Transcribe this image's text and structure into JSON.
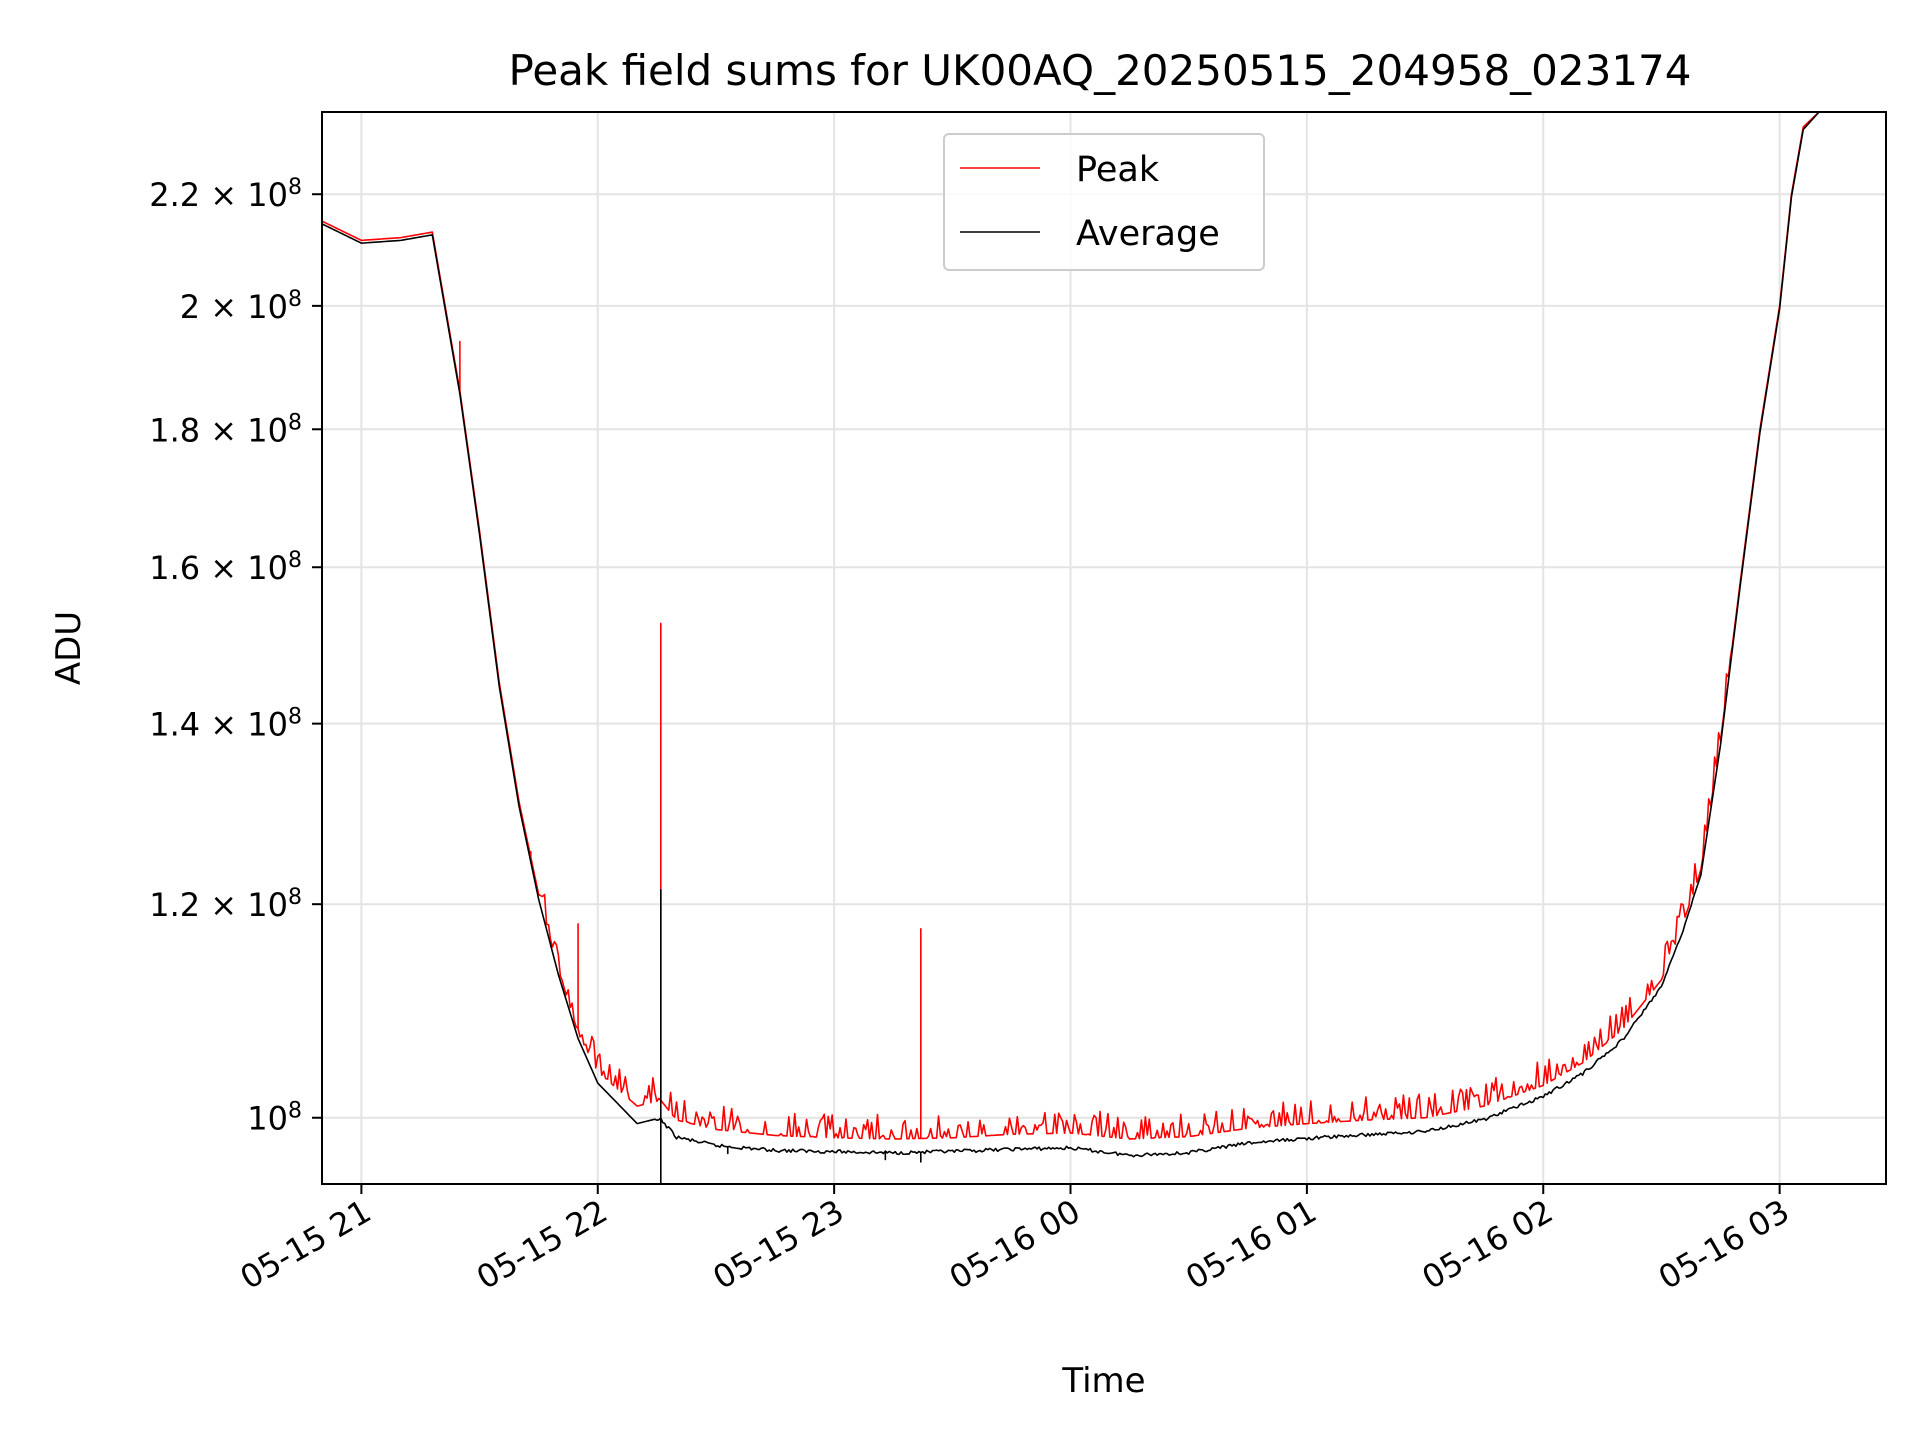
{
  "chart_data": {
    "type": "line",
    "title": "Peak field sums for UK00AQ_20250515_204958_023174",
    "xlabel": "Time",
    "ylabel": "ADU",
    "y_scale": "log",
    "ylim": [
      94500000,
      236000000
    ],
    "xlim": [
      "2025-05-15 20:50",
      "2025-05-16 03:27"
    ],
    "grid": true,
    "legend_position": "upper center",
    "x_ticks": [
      {
        "value": "2025-05-15 21:00",
        "label": "05-15 21"
      },
      {
        "value": "2025-05-15 22:00",
        "label": "05-15 22"
      },
      {
        "value": "2025-05-15 23:00",
        "label": "05-15 23"
      },
      {
        "value": "2025-05-16 00:00",
        "label": "05-16 00"
      },
      {
        "value": "2025-05-16 01:00",
        "label": "05-16 01"
      },
      {
        "value": "2025-05-16 02:00",
        "label": "05-16 02"
      },
      {
        "value": "2025-05-16 03:00",
        "label": "05-16 03"
      }
    ],
    "y_ticks": [
      {
        "value": 100000000,
        "mantissa": "",
        "exp": "8"
      },
      {
        "value": 120000000,
        "mantissa": "1.2",
        "exp": "8"
      },
      {
        "value": 140000000,
        "mantissa": "1.4",
        "exp": "8"
      },
      {
        "value": 160000000,
        "mantissa": "1.6",
        "exp": "8"
      },
      {
        "value": 180000000,
        "mantissa": "1.8",
        "exp": "8"
      },
      {
        "value": 200000000,
        "mantissa": "2",
        "exp": "8"
      },
      {
        "value": 220000000,
        "mantissa": "2.2",
        "exp": "8"
      }
    ],
    "x": [
      "2025-05-15 20:50",
      "2025-05-15 21:00",
      "2025-05-15 21:10",
      "2025-05-15 21:18",
      "2025-05-15 21:25",
      "2025-05-15 21:30",
      "2025-05-15 21:35",
      "2025-05-15 21:40",
      "2025-05-15 21:45",
      "2025-05-15 21:50",
      "2025-05-15 21:55",
      "2025-05-15 22:00",
      "2025-05-15 22:10",
      "2025-05-15 22:16",
      "2025-05-15 22:20",
      "2025-05-15 22:30",
      "2025-05-15 22:45",
      "2025-05-15 23:00",
      "2025-05-15 23:15",
      "2025-05-15 23:30",
      "2025-05-15 23:45",
      "2025-05-16 00:00",
      "2025-05-16 00:15",
      "2025-05-16 00:30",
      "2025-05-16 00:45",
      "2025-05-16 01:00",
      "2025-05-16 01:15",
      "2025-05-16 01:30",
      "2025-05-16 01:45",
      "2025-05-16 02:00",
      "2025-05-16 02:10",
      "2025-05-16 02:20",
      "2025-05-16 02:30",
      "2025-05-16 02:35",
      "2025-05-16 02:40",
      "2025-05-16 02:45",
      "2025-05-16 02:50",
      "2025-05-16 02:55",
      "2025-05-16 03:00",
      "2025-05-16 03:03",
      "2025-05-16 03:06",
      "2025-05-16 03:10",
      "2025-05-16 03:27"
    ],
    "series": [
      {
        "name": "Peak",
        "color": "#ff0000",
        "values": [
          215000000,
          211500000,
          212000000,
          213000000,
          186000000,
          165000000,
          145000000,
          131000000,
          121000000,
          113500000,
          107500000,
          104000000,
          101000000,
          101500000,
          99800000,
          99000000,
          98500000,
          98300000,
          98200000,
          98300000,
          98600000,
          98700000,
          98200000,
          98400000,
          99100000,
          99500000,
          99800000,
          100000000,
          101000000,
          102800000,
          104800000,
          107800000,
          112500000,
          117500000,
          123500000,
          138000000,
          158000000,
          180000000,
          200000000,
          220000000,
          233000000,
          236000000,
          236000000
        ]
      },
      {
        "name": "Average",
        "color": "#000000",
        "values": [
          214500000,
          211000000,
          211500000,
          212500000,
          185500000,
          164500000,
          144500000,
          130500000,
          120500000,
          113000000,
          107000000,
          103000000,
          99500000,
          100000000,
          98500000,
          97800000,
          97400000,
          97300000,
          97200000,
          97300000,
          97500000,
          97600000,
          97000000,
          97200000,
          98000000,
          98400000,
          98700000,
          99000000,
          100000000,
          102000000,
          104000000,
          107000000,
          112000000,
          117000000,
          123000000,
          137500000,
          157500000,
          179500000,
          199500000,
          219500000,
          232500000,
          236000000,
          236000000
        ]
      }
    ],
    "peak_spikes": [
      {
        "x": "2025-05-15 21:25",
        "value": 194000000
      },
      {
        "x": "2025-05-15 21:43",
        "value": 125500000
      },
      {
        "x": "2025-05-15 21:55",
        "value": 118000000
      },
      {
        "x": "2025-05-15 22:16",
        "value": 152500000
      },
      {
        "x": "2025-05-15 23:22",
        "value": 117500000
      }
    ],
    "average_dips": [
      {
        "x": "2025-05-15 22:16",
        "value": 94500000
      },
      {
        "x": "2025-05-15 22:33",
        "value": 97000000
      },
      {
        "x": "2025-05-15 23:13",
        "value": 96500000
      },
      {
        "x": "2025-05-15 23:22",
        "value": 96300000
      }
    ],
    "average_spikes": [
      {
        "x": "2025-05-15 22:16",
        "value": 121500000
      }
    ]
  }
}
